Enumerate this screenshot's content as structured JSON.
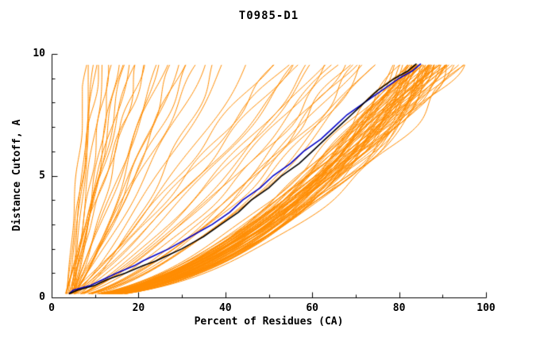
{
  "window": {
    "title": "T0985-D1"
  },
  "chart_data": {
    "type": "line",
    "title": "T0985-D1",
    "xlabel": "Percent of Residues (CA)",
    "ylabel": "Distance Cutoff, A",
    "xlim": [
      0,
      100
    ],
    "ylim": [
      0,
      10
    ],
    "x_major_ticks": [
      0,
      20,
      40,
      60,
      80,
      100
    ],
    "x_minor_ticks": [
      10,
      30,
      50,
      70,
      90
    ],
    "y_major_ticks": [
      0,
      5,
      10
    ],
    "y_minor_ticks": [
      1,
      2,
      3,
      4,
      6,
      7,
      8,
      9
    ],
    "grid": false,
    "legend": "none",
    "colors": {
      "ensemble": "#FF8C00",
      "axis": "#000000",
      "text": "#000000",
      "black_curve": "#000000",
      "blue_curve": "#0000C8"
    },
    "series": [
      {
        "name": "blue-highlight-model",
        "color": "#0000C8",
        "points_pd": [
          [
            4,
            0.15
          ],
          [
            5,
            0.3
          ],
          [
            9,
            0.5
          ],
          [
            12,
            0.75
          ],
          [
            15,
            1.0
          ],
          [
            19,
            1.3
          ],
          [
            21,
            1.5
          ],
          [
            24,
            1.75
          ],
          [
            27,
            2.0
          ],
          [
            30,
            2.3
          ],
          [
            32,
            2.5
          ],
          [
            37,
            3.0
          ],
          [
            41,
            3.5
          ],
          [
            44,
            4.0
          ],
          [
            48,
            4.5
          ],
          [
            51,
            5.0
          ],
          [
            55,
            5.5
          ],
          [
            58,
            6.0
          ],
          [
            62,
            6.5
          ],
          [
            65,
            7.0
          ],
          [
            68,
            7.5
          ],
          [
            72,
            8.0
          ],
          [
            76,
            8.5
          ],
          [
            80,
            9.0
          ],
          [
            83,
            9.3
          ],
          [
            85,
            9.6
          ]
        ]
      },
      {
        "name": "black-highlight-model",
        "color": "#000000",
        "points_pd": [
          [
            4,
            0.15
          ],
          [
            6,
            0.3
          ],
          [
            10,
            0.5
          ],
          [
            13,
            0.75
          ],
          [
            17,
            1.0
          ],
          [
            21,
            1.3
          ],
          [
            24,
            1.5
          ],
          [
            27,
            1.75
          ],
          [
            30,
            2.0
          ],
          [
            33,
            2.3
          ],
          [
            35,
            2.5
          ],
          [
            39,
            3.0
          ],
          [
            43,
            3.5
          ],
          [
            46,
            4.0
          ],
          [
            50,
            4.5
          ],
          [
            53,
            5.0
          ],
          [
            57,
            5.5
          ],
          [
            60,
            6.0
          ],
          [
            63,
            6.5
          ],
          [
            66,
            7.0
          ],
          [
            69,
            7.5
          ],
          [
            72,
            8.0
          ],
          [
            75,
            8.5
          ],
          [
            79,
            9.0
          ],
          [
            82,
            9.3
          ],
          [
            84,
            9.6
          ]
        ]
      }
    ],
    "ensemble": {
      "description": "orange model curves; each entry is [p_max_percent, shape_alpha] for p(d)=p0+(pmax-p0)*(d/9.6)^alpha",
      "d_range": [
        0.15,
        9.6
      ],
      "curves": [
        [
          88,
          0.5
        ],
        [
          85,
          0.52
        ],
        [
          90,
          0.48
        ],
        [
          82,
          0.55
        ],
        [
          86,
          0.47
        ],
        [
          92,
          0.5
        ],
        [
          84,
          0.53
        ],
        [
          87,
          0.49
        ],
        [
          80,
          0.56
        ],
        [
          89,
          0.51
        ],
        [
          83,
          0.54
        ],
        [
          91,
          0.46
        ],
        [
          86,
          0.52
        ],
        [
          88,
          0.47
        ],
        [
          81,
          0.57
        ],
        [
          85,
          0.5
        ],
        [
          93,
          0.49
        ],
        [
          84,
          0.55
        ],
        [
          87,
          0.51
        ],
        [
          90,
          0.53
        ],
        [
          82,
          0.48
        ],
        [
          86,
          0.56
        ],
        [
          88,
          0.52
        ],
        [
          83,
          0.5
        ],
        [
          95,
          0.47
        ],
        [
          85,
          0.54
        ],
        [
          89,
          0.49
        ],
        [
          81,
          0.52
        ],
        [
          87,
          0.46
        ],
        [
          92,
          0.55
        ],
        [
          84,
          0.51
        ],
        [
          86,
          0.49
        ],
        [
          90,
          0.57
        ],
        [
          83,
          0.53
        ],
        [
          88,
          0.48
        ],
        [
          85,
          0.56
        ],
        [
          91,
          0.5
        ],
        [
          82,
          0.52
        ],
        [
          87,
          0.54
        ],
        [
          89,
          0.47
        ],
        [
          84,
          0.58
        ],
        [
          86,
          0.51
        ],
        [
          93,
          0.53
        ],
        [
          81,
          0.49
        ],
        [
          88,
          0.55
        ],
        [
          85,
          0.48
        ],
        [
          90,
          0.52
        ],
        [
          83,
          0.57
        ],
        [
          87,
          0.5
        ],
        [
          92,
          0.48
        ],
        [
          80,
          0.54
        ],
        [
          86,
          0.53
        ],
        [
          89,
          0.56
        ],
        [
          84,
          0.49
        ],
        [
          88,
          0.51
        ],
        [
          91,
          0.54
        ],
        [
          82,
          0.5
        ],
        [
          85,
          0.58
        ],
        [
          87,
          0.47
        ],
        [
          94,
          0.52
        ],
        [
          83,
          0.55
        ],
        [
          86,
          0.5
        ],
        [
          90,
          0.49
        ],
        [
          84,
          0.53
        ],
        [
          88,
          0.56
        ],
        [
          81,
          0.51
        ],
        [
          89,
          0.53
        ],
        [
          85,
          0.49
        ],
        [
          87,
          0.57
        ],
        [
          92,
          0.51
        ],
        [
          70,
          0.65
        ],
        [
          65,
          0.72
        ],
        [
          60,
          0.8
        ],
        [
          55,
          0.85
        ],
        [
          68,
          0.6
        ],
        [
          62,
          0.75
        ],
        [
          58,
          0.9
        ],
        [
          72,
          0.58
        ],
        [
          50,
          0.95
        ],
        [
          66,
          0.68
        ],
        [
          74,
          0.62
        ],
        [
          57,
          0.82
        ],
        [
          63,
          0.7
        ],
        [
          69,
          0.66
        ],
        [
          52,
          0.88
        ],
        [
          75,
          0.6
        ],
        [
          61,
          0.78
        ],
        [
          67,
          0.64
        ],
        [
          54,
          0.92
        ],
        [
          71,
          0.63
        ],
        [
          10,
          0.9
        ],
        [
          12,
          1.1
        ],
        [
          15,
          0.8
        ],
        [
          8,
          1.0
        ],
        [
          20,
          0.85
        ],
        [
          25,
          0.95
        ],
        [
          18,
          1.05
        ],
        [
          30,
          0.9
        ],
        [
          14,
          0.75
        ],
        [
          22,
          1.1
        ],
        [
          9,
          0.95
        ],
        [
          35,
          0.85
        ],
        [
          16,
          1.0
        ],
        [
          28,
          0.8
        ],
        [
          11,
          1.15
        ],
        [
          40,
          0.9
        ],
        [
          24,
          0.7
        ],
        [
          19,
          1.05
        ],
        [
          32,
          0.95
        ],
        [
          13,
          0.85
        ],
        [
          45,
          0.8
        ],
        [
          26,
          1.0
        ],
        [
          17,
          0.9
        ],
        [
          38,
          0.75
        ],
        [
          21,
          1.1
        ],
        [
          29,
          0.85
        ],
        [
          10,
          1.05
        ],
        [
          34,
          0.95
        ]
      ]
    }
  }
}
